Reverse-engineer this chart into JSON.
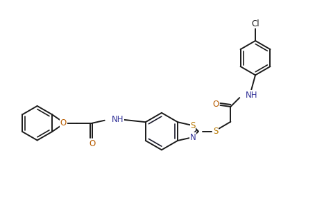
{
  "bg_color": "#ffffff",
  "lc": "#1a1a1a",
  "dc": "#1a1a2a",
  "atom_colors": {
    "N": "#333399",
    "O": "#b85c00",
    "S": "#b87800",
    "Cl": "#1a1a1a"
  },
  "figsize": [
    4.54,
    2.93
  ],
  "dpi": 100,
  "lw": 1.4,
  "lw2": 1.2
}
